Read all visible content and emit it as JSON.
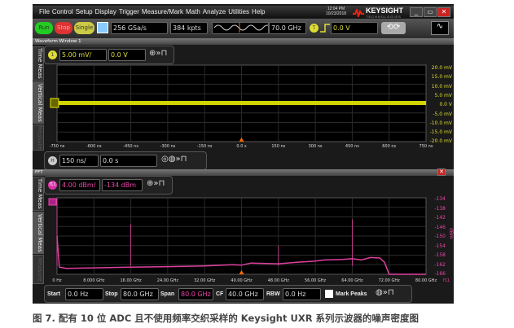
{
  "menu": [
    "File",
    "Control",
    "Setup",
    "Display",
    "Trigger",
    "Measure/Mark",
    "Math",
    "Analyze",
    "Utilities",
    "Help"
  ],
  "clock": {
    "time": "12:04 PM",
    "date": "10/23/2018"
  },
  "brand": {
    "name": "KEYSIGHT",
    "sub": "TECHNOLOGIES"
  },
  "toolbar": {
    "run": "Run",
    "stop": "Stop",
    "single": "Single",
    "sample_rate": "256 GSa/s",
    "memory": "384 kpts",
    "bandwidth": "70.0 GHz",
    "trigger_badge": "T",
    "trigger_level": "0.0 V"
  },
  "waveform_window": {
    "title": "Waveform Window 1",
    "channel_badge": "1",
    "scale": "5.00 mV/",
    "offset": "0.0 V",
    "y_labels": [
      "20.0 mV",
      "15.0 mV",
      "10.0 mV",
      "5.0 mV",
      "0.0 V",
      "-5.0 mV",
      "-10.0 mV",
      "-15.0 mV",
      "-20.0 mV"
    ],
    "x_labels": [
      "-750 ns",
      "-600 ns",
      "-450 ns",
      "-300 ns",
      "-150 ns",
      "0.0 s",
      "150 ns",
      "300 ns",
      "450 ns",
      "600 ns",
      "750 ns"
    ],
    "trace_color": "#e8e800"
  },
  "horizontal": {
    "badge": "H",
    "scale": "150 ns/",
    "position": "0.0 s"
  },
  "sidetabs": [
    "Time Meas",
    "Vertical Meas",
    "Measure"
  ],
  "fft": {
    "title": "FFT",
    "badge": "f11",
    "scale": "4.00 dBm/",
    "offset": "-134 dBm",
    "unit": "dBm",
    "y_labels": [
      "-134",
      "-138",
      "-142",
      "-146",
      "-150",
      "-154",
      "-158",
      "-162",
      "-166"
    ],
    "x_labels": [
      "0 Hz",
      "8.000 GHz",
      "16.00 GHz",
      "24.00 GHz",
      "32.00 GHz",
      "40.00 GHz",
      "48.00 GHz",
      "56.00 GHz",
      "64.00 GHz",
      "72.00 GHz",
      "80.00 GHz"
    ],
    "trace_label": "f11",
    "trace_color": "#e040a0",
    "chart_data": {
      "type": "line",
      "xlim": [
        0,
        80
      ],
      "ylim": [
        -166,
        -134
      ],
      "x": [
        0,
        0.5,
        2,
        8,
        16,
        24,
        32,
        38,
        40,
        42,
        48,
        52,
        56,
        58,
        62,
        64,
        66,
        68,
        70,
        71,
        72,
        80
      ],
      "y": [
        -150,
        -163,
        -163.5,
        -163.3,
        -163,
        -162.8,
        -162.5,
        -162,
        -162.2,
        -161.3,
        -161.6,
        -161,
        -160.5,
        -160,
        -159.8,
        -159.5,
        -160,
        -159,
        -159.2,
        -161,
        -166,
        -166
      ],
      "spurs": [
        {
          "x": 0,
          "y": -134
        },
        {
          "x": 16,
          "y": -145
        },
        {
          "x": 48,
          "y": -154
        },
        {
          "x": 64,
          "y": -143
        }
      ]
    }
  },
  "bottom": {
    "start_label": "Start",
    "start": "0.0 Hz",
    "stop_label": "Stop",
    "stop": "80.0 GHz",
    "span_label": "Span",
    "span": "80.0 GHz",
    "cf_label": "CF",
    "cf": "40.0 GHz",
    "rbw_label": "RBW",
    "rbw": "0.0 Hz",
    "mark_peaks": "Mark Peaks"
  },
  "caption": "图 7. 配有 10 位 ADC 且不使用频率交织采样的 Keysight UXR 系列示波器的噪声密度图"
}
